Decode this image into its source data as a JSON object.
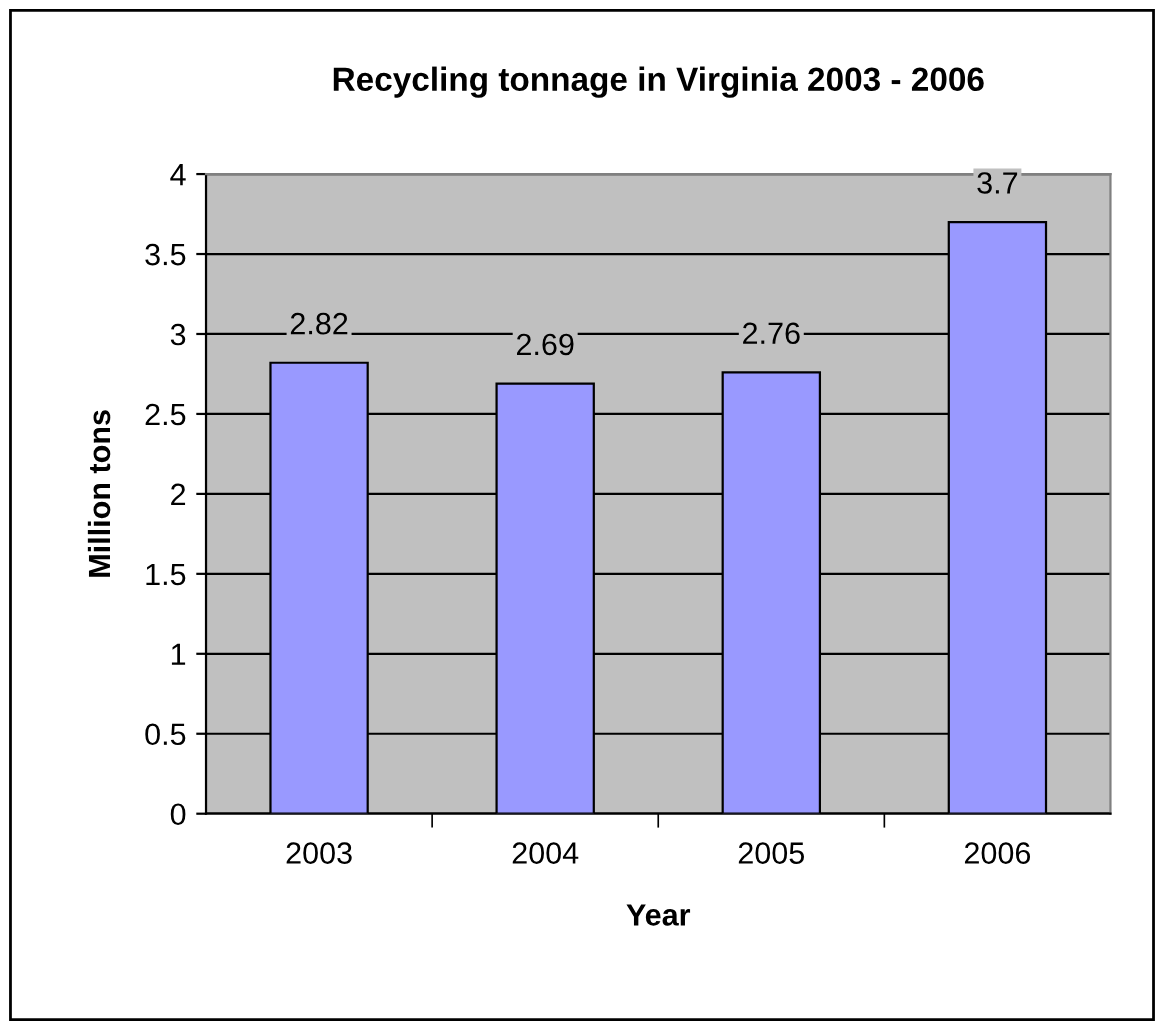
{
  "chart_data": {
    "type": "bar",
    "title": "Recycling tonnage in Virginia 2003 - 2006",
    "xlabel": "Year",
    "ylabel": "Million tons",
    "categories": [
      "2003",
      "2004",
      "2005",
      "2006"
    ],
    "values": [
      2.82,
      2.69,
      2.76,
      3.7
    ],
    "color": "#9999ff",
    "ylim": [
      0,
      4
    ],
    "yticks": [
      0,
      0.5,
      1,
      1.5,
      2,
      2.5,
      3,
      3.5,
      4
    ],
    "grid": "y",
    "data_labels": true,
    "legend": false
  }
}
